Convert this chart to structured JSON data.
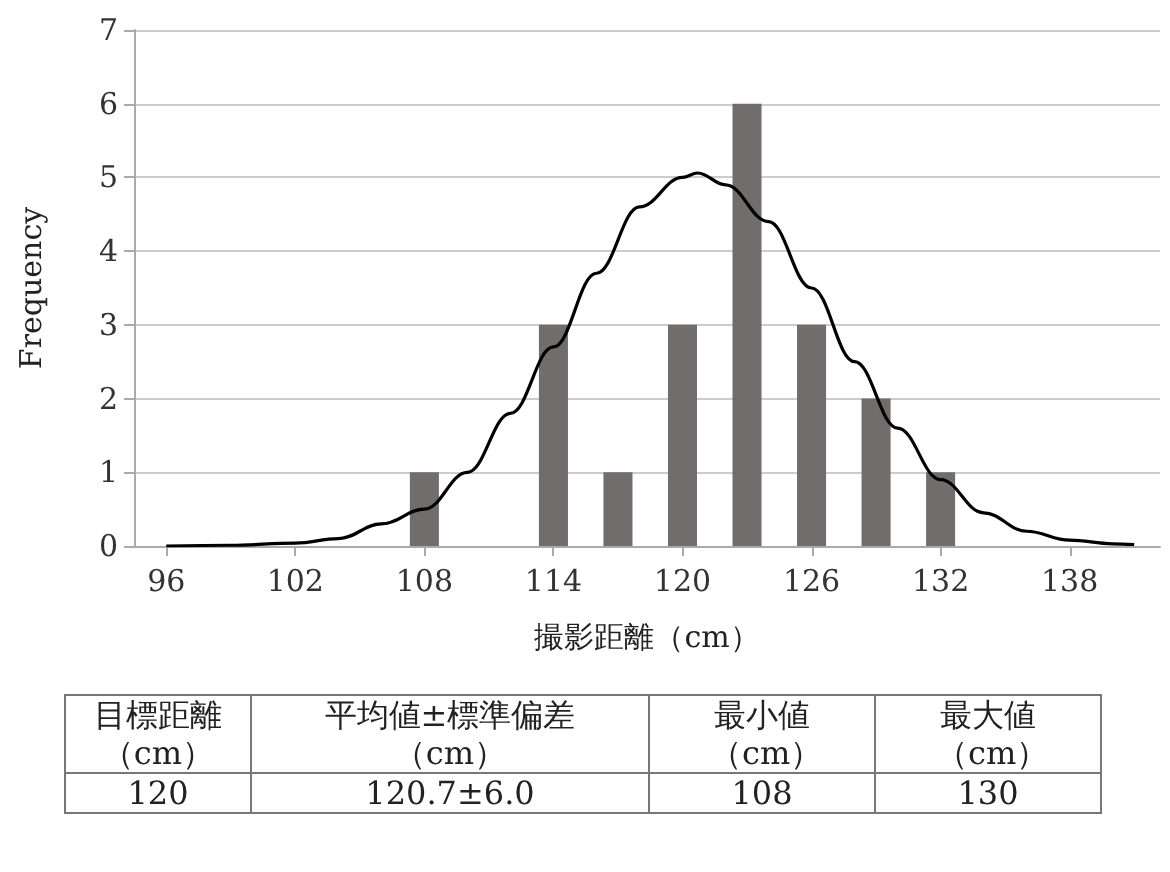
{
  "chart_data": {
    "type": "histogram",
    "xlabel": "撮影距離（cm）",
    "ylabel": "Frequency",
    "bins": [
      106.5,
      109.5,
      112.5,
      115.5,
      118.5,
      121.5,
      124.5,
      127.5,
      130.5,
      133.5
    ],
    "values": [
      1,
      0,
      3,
      1,
      3,
      6,
      3,
      2,
      1
    ],
    "color": "#716d6d",
    "series": [
      {
        "type": "line",
        "color": "#000000",
        "x": [
          96,
          99,
          102,
          104,
          106,
          108,
          110,
          112,
          114,
          116,
          118,
          120,
          120.7,
          122,
          124,
          126,
          128,
          130,
          132,
          134,
          136,
          138,
          140,
          141
        ],
        "values": [
          0,
          0.01,
          0.04,
          0.1,
          0.3,
          0.5,
          1.0,
          1.8,
          2.7,
          3.7,
          4.6,
          5.0,
          5.06,
          4.9,
          4.4,
          3.5,
          2.5,
          1.6,
          0.9,
          0.45,
          0.2,
          0.08,
          0.03,
          0.02
        ]
      }
    ],
    "xlim": [
      94.5,
      142.2
    ],
    "xticks": [
      96,
      102,
      108,
      114,
      120,
      126,
      132,
      138
    ],
    "ylim": [
      0,
      7
    ],
    "yticks": [
      0,
      1,
      2,
      3,
      4,
      5,
      6,
      7
    ],
    "grid": "y",
    "marker": "none",
    "annotations": [
      "目標距離（cm）",
      "平均値±標準偏差（cm）",
      "最小値（cm）",
      "最大値（cm）",
      "120",
      "120.7±6.0",
      "108",
      "130"
    ]
  }
}
